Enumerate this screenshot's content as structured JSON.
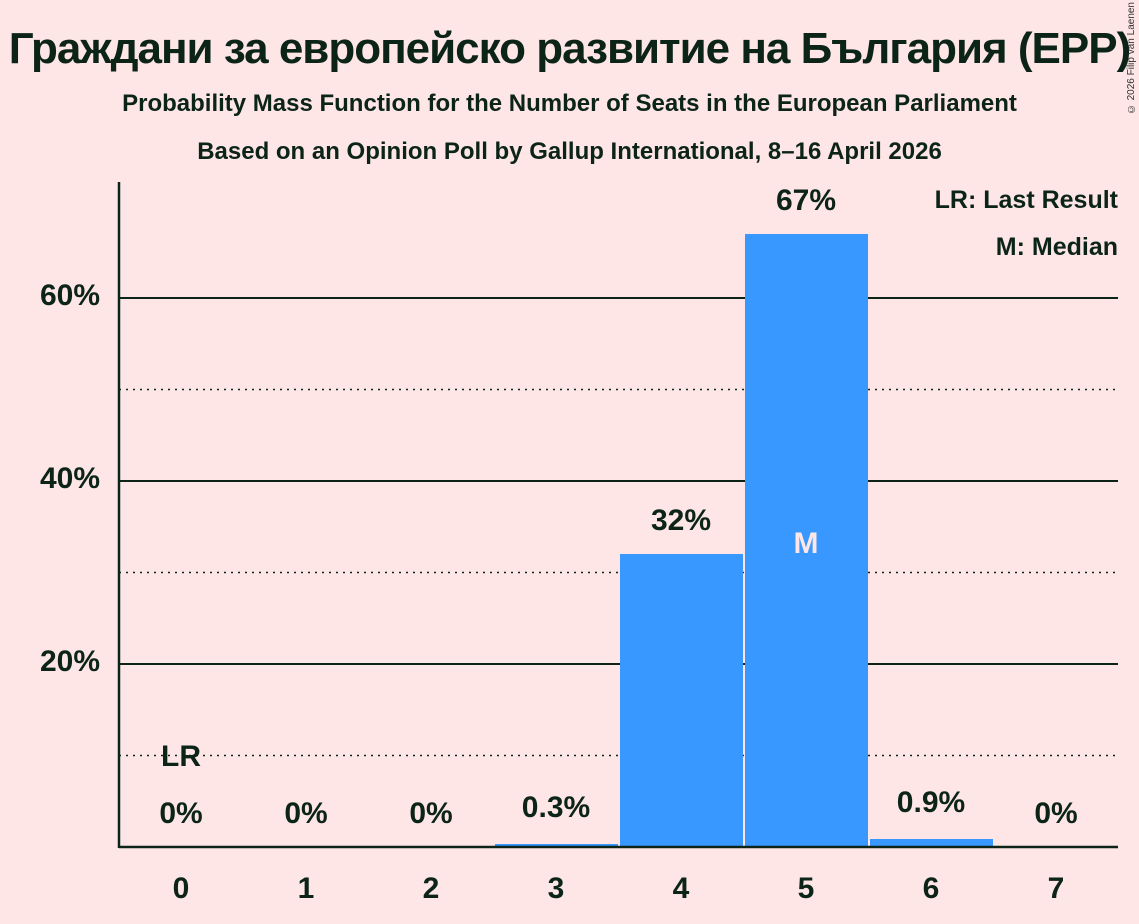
{
  "header": {
    "title": "Граждани за европейско развитие на България (EPP)",
    "subtitle1": "Probability Mass Function for the Number of Seats in the European Parliament",
    "subtitle2": "Based on an Opinion Poll by Gallup International, 8–16 April 2026",
    "copyright": "© 2026 Filip van Laenen"
  },
  "legend": {
    "lr": "LR: Last Result",
    "m": "M: Median"
  },
  "markers": {
    "lr_label": "LR",
    "median_label": "M"
  },
  "colors": {
    "background": "#fde6e5",
    "bar": "#3898ff",
    "text": "#0c2418"
  },
  "chart_data": {
    "type": "bar",
    "title": "Граждани за европейско развитие на България (EPP)",
    "subtitle": "Probability Mass Function for the Number of Seats in the European Parliament — Based on an Opinion Poll by Gallup International, 8–16 April 2026",
    "xlabel": "",
    "ylabel": "",
    "categories": [
      "0",
      "1",
      "2",
      "3",
      "4",
      "5",
      "6",
      "7"
    ],
    "values": [
      0,
      0,
      0,
      0.3,
      32,
      67,
      0.9,
      0
    ],
    "value_labels": [
      "0%",
      "0%",
      "0%",
      "0.3%",
      "32%",
      "67%",
      "0.9%",
      "0%"
    ],
    "ytick_labels": [
      "20%",
      "40%",
      "60%"
    ],
    "ylim": [
      0,
      72
    ],
    "grid": {
      "major": [
        20,
        40,
        60
      ],
      "minor_dotted": [
        10,
        30,
        50
      ]
    },
    "last_result_seat": 0,
    "median_seat": 5,
    "legend_position": "top-right"
  }
}
